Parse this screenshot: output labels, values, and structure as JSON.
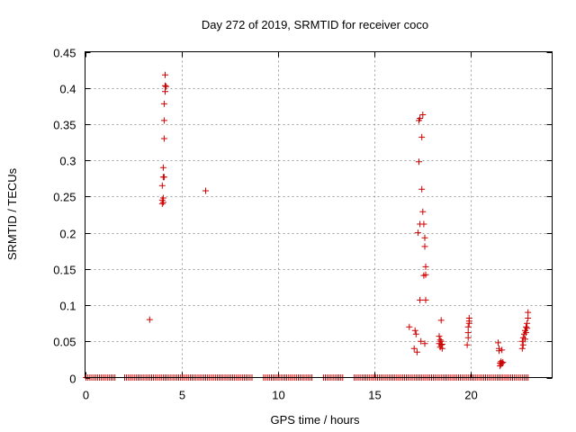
{
  "chart_data": {
    "type": "scatter",
    "title": "Day 272 of 2019, SRMTID for receiver coco",
    "xlabel": "GPS time / hours",
    "ylabel": "SRMTID / TECUs",
    "xlim": [
      0,
      24.2
    ],
    "ylim": [
      0,
      0.45
    ],
    "xticks": [
      0,
      5,
      10,
      15,
      20
    ],
    "xtick_labels": [
      "0",
      "5",
      "10",
      "15",
      "20"
    ],
    "yticks": [
      0,
      0.05,
      0.1,
      0.15,
      0.2,
      0.25,
      0.3,
      0.35,
      0.4,
      0.45
    ],
    "ytick_labels": [
      "0",
      "0.05",
      "0.1",
      "0.15",
      "0.2",
      "0.25",
      "0.3",
      "0.35",
      "0.4",
      "0.45"
    ],
    "grid": true,
    "marker": "+",
    "series": [
      {
        "name": "SRMTID",
        "color": "#cc0000",
        "points": [
          [
            3.35,
            0.08
          ],
          [
            4.0,
            0.245
          ],
          [
            4.0,
            0.24
          ],
          [
            4.0,
            0.265
          ],
          [
            4.05,
            0.29
          ],
          [
            4.05,
            0.277
          ],
          [
            4.05,
            0.248
          ],
          [
            4.05,
            0.242
          ],
          [
            4.1,
            0.33
          ],
          [
            4.1,
            0.355
          ],
          [
            4.1,
            0.378
          ],
          [
            4.15,
            0.395
          ],
          [
            4.15,
            0.403
          ],
          [
            4.2,
            0.402
          ],
          [
            4.15,
            0.418
          ],
          [
            4.1,
            0.277
          ],
          [
            6.25,
            0.258
          ],
          [
            16.8,
            0.07
          ],
          [
            17.05,
            0.04
          ],
          [
            17.1,
            0.065
          ],
          [
            17.15,
            0.06
          ],
          [
            17.2,
            0.035
          ],
          [
            17.25,
            0.2
          ],
          [
            17.3,
            0.298
          ],
          [
            17.3,
            0.355
          ],
          [
            17.35,
            0.358
          ],
          [
            17.35,
            0.212
          ],
          [
            17.35,
            0.107
          ],
          [
            17.4,
            0.05
          ],
          [
            17.45,
            0.332
          ],
          [
            17.45,
            0.26
          ],
          [
            17.5,
            0.363
          ],
          [
            17.5,
            0.229
          ],
          [
            17.55,
            0.212
          ],
          [
            17.55,
            0.141
          ],
          [
            17.6,
            0.193
          ],
          [
            17.6,
            0.181
          ],
          [
            17.65,
            0.153
          ],
          [
            17.65,
            0.142
          ],
          [
            17.65,
            0.107
          ],
          [
            17.6,
            0.047
          ],
          [
            18.35,
            0.057
          ],
          [
            18.35,
            0.047
          ],
          [
            18.4,
            0.052
          ],
          [
            18.4,
            0.042
          ],
          [
            18.45,
            0.045
          ],
          [
            18.45,
            0.05
          ],
          [
            18.45,
            0.079
          ],
          [
            18.5,
            0.04
          ],
          [
            18.5,
            0.046
          ],
          [
            19.8,
            0.045
          ],
          [
            19.85,
            0.055
          ],
          [
            19.85,
            0.062
          ],
          [
            19.85,
            0.07
          ],
          [
            19.9,
            0.075
          ],
          [
            19.9,
            0.082
          ],
          [
            19.9,
            0.078
          ],
          [
            21.4,
            0.048
          ],
          [
            21.45,
            0.04
          ],
          [
            21.45,
            0.037
          ],
          [
            21.5,
            0.02
          ],
          [
            21.5,
            0.016
          ],
          [
            21.55,
            0.018
          ],
          [
            21.55,
            0.022
          ],
          [
            21.6,
            0.02
          ],
          [
            21.6,
            0.038
          ],
          [
            21.65,
            0.021
          ],
          [
            22.65,
            0.04
          ],
          [
            22.65,
            0.05
          ],
          [
            22.7,
            0.045
          ],
          [
            22.7,
            0.055
          ],
          [
            22.75,
            0.06
          ],
          [
            22.8,
            0.065
          ],
          [
            22.8,
            0.053
          ],
          [
            22.85,
            0.07
          ],
          [
            22.85,
            0.062
          ],
          [
            22.9,
            0.068
          ],
          [
            22.9,
            0.075
          ],
          [
            22.95,
            0.082
          ],
          [
            22.95,
            0.09
          ]
        ],
        "zero_baseline": {
          "y": 0,
          "x_start": 0.05,
          "x_end": 22.95,
          "x_step": 0.1,
          "gaps": [
            [
              1.6,
              2.0
            ],
            [
              8.7,
              9.2
            ],
            [
              11.8,
              12.3
            ],
            [
              13.4,
              13.9
            ]
          ]
        }
      }
    ]
  }
}
